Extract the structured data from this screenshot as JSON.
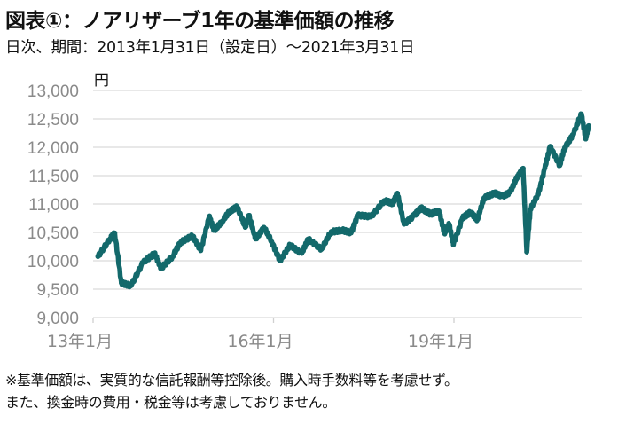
{
  "title": "図表①：ノアリザーブ1年の基準価額の推移",
  "subtitle": "日次、期間：2013年1月31日（設定日）～2021年3月31日",
  "notes": [
    "※基準価額は、実質的な信託報酬等控除後。購入時手数料等を考慮せず。",
    "また、換金時の費用・税金等は考慮しておりません。"
  ],
  "chart_data": {
    "type": "line",
    "title": "図表①：ノアリザーブ1年の基準価額の推移",
    "xlabel": "",
    "ylabel": "円",
    "ylim": [
      9000,
      13000
    ],
    "xlim": [
      2013.08,
      2021.25
    ],
    "yticks": [
      9000,
      9500,
      10000,
      10500,
      11000,
      11500,
      12000,
      12500,
      13000
    ],
    "ytick_labels": [
      "9,000",
      "9,500",
      "10,000",
      "10,500",
      "11,000",
      "11,500",
      "12,000",
      "12,500",
      "13,000"
    ],
    "xticks": [
      2013.0,
      2016.0,
      2019.0
    ],
    "xtick_labels": [
      "13年1月",
      "16年1月",
      "19年1月"
    ],
    "grid": true,
    "color": "#13696b",
    "series": [
      {
        "name": "基準価額",
        "x": [
          2013.08,
          2013.28,
          2013.36,
          2013.47,
          2013.63,
          2013.83,
          2014.02,
          2014.13,
          2014.32,
          2014.46,
          2014.65,
          2014.79,
          2014.93,
          2015.01,
          2015.15,
          2015.28,
          2015.39,
          2015.53,
          2015.59,
          2015.7,
          2015.84,
          2015.97,
          2016.11,
          2016.28,
          2016.47,
          2016.58,
          2016.8,
          2016.96,
          2017.13,
          2017.29,
          2017.4,
          2017.62,
          2017.84,
          2017.98,
          2018.06,
          2018.17,
          2018.34,
          2018.45,
          2018.61,
          2018.75,
          2018.84,
          2018.92,
          2018.99,
          2019.14,
          2019.28,
          2019.39,
          2019.5,
          2019.66,
          2019.8,
          2019.94,
          2020.05,
          2020.15,
          2020.21,
          2020.27,
          2020.4,
          2020.51,
          2020.6,
          2020.76,
          2020.84,
          2020.98,
          2021.12,
          2021.19,
          2021.24
        ],
        "y": [
          10075,
          10385,
          10490,
          9610,
          9560,
          9970,
          10130,
          9870,
          10075,
          10335,
          10440,
          10180,
          10775,
          10540,
          10700,
          10880,
          10955,
          10590,
          10800,
          10385,
          10590,
          10335,
          10000,
          10280,
          10130,
          10385,
          10205,
          10515,
          10540,
          10490,
          10800,
          10775,
          11060,
          11010,
          11190,
          10645,
          10800,
          10930,
          10825,
          10880,
          10490,
          10645,
          10280,
          10750,
          10855,
          10725,
          11110,
          11190,
          11135,
          11215,
          11475,
          11630,
          10155,
          10905,
          11165,
          11630,
          12015,
          11680,
          11990,
          12225,
          12585,
          12145,
          12380
        ]
      }
    ]
  }
}
